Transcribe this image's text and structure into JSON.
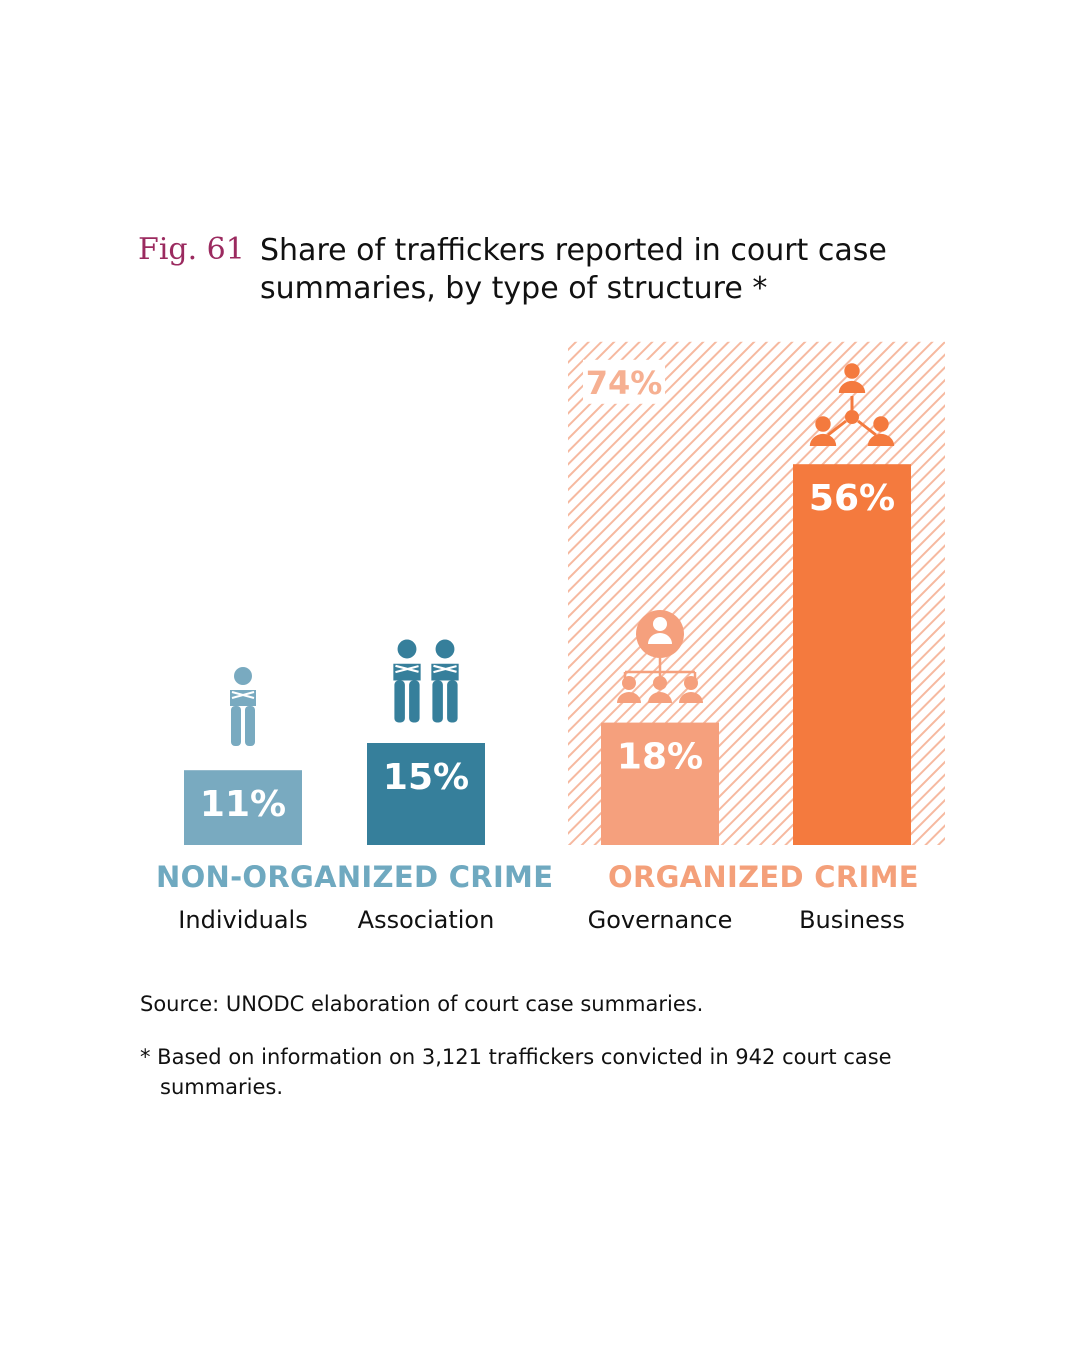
{
  "figure": {
    "label": "Fig. 61",
    "title": "Share of traffickers reported in court case summaries, by type of structure *"
  },
  "chart_data": {
    "type": "bar",
    "categories": [
      "Individuals",
      "Association",
      "Governance",
      "Business"
    ],
    "values": [
      11,
      15,
      18,
      56
    ],
    "value_labels": [
      "11%",
      "15%",
      "18%",
      "56%"
    ],
    "groups": [
      {
        "name": "NON-ORGANIZED CRIME",
        "categories": [
          "Individuals",
          "Association"
        ],
        "color": "#6fa9c0"
      },
      {
        "name": "ORGANIZED CRIME",
        "categories": [
          "Governance",
          "Business"
        ],
        "total": 74,
        "total_label": "74%",
        "color": "#f4a07a"
      }
    ],
    "bar_colors": [
      "#79aac0",
      "#367f9b",
      "#f5a07d",
      "#f47a3e"
    ],
    "icons": [
      "single-person-icon",
      "two-persons-icon",
      "hierarchy-icon",
      "network-icon"
    ],
    "ylim": [
      0,
      80
    ],
    "unit": "%"
  },
  "source": "Source: UNODC elaboration of court case summaries.",
  "note": "* Based on information on 3,121 traffickers convicted in 942 court case summaries."
}
